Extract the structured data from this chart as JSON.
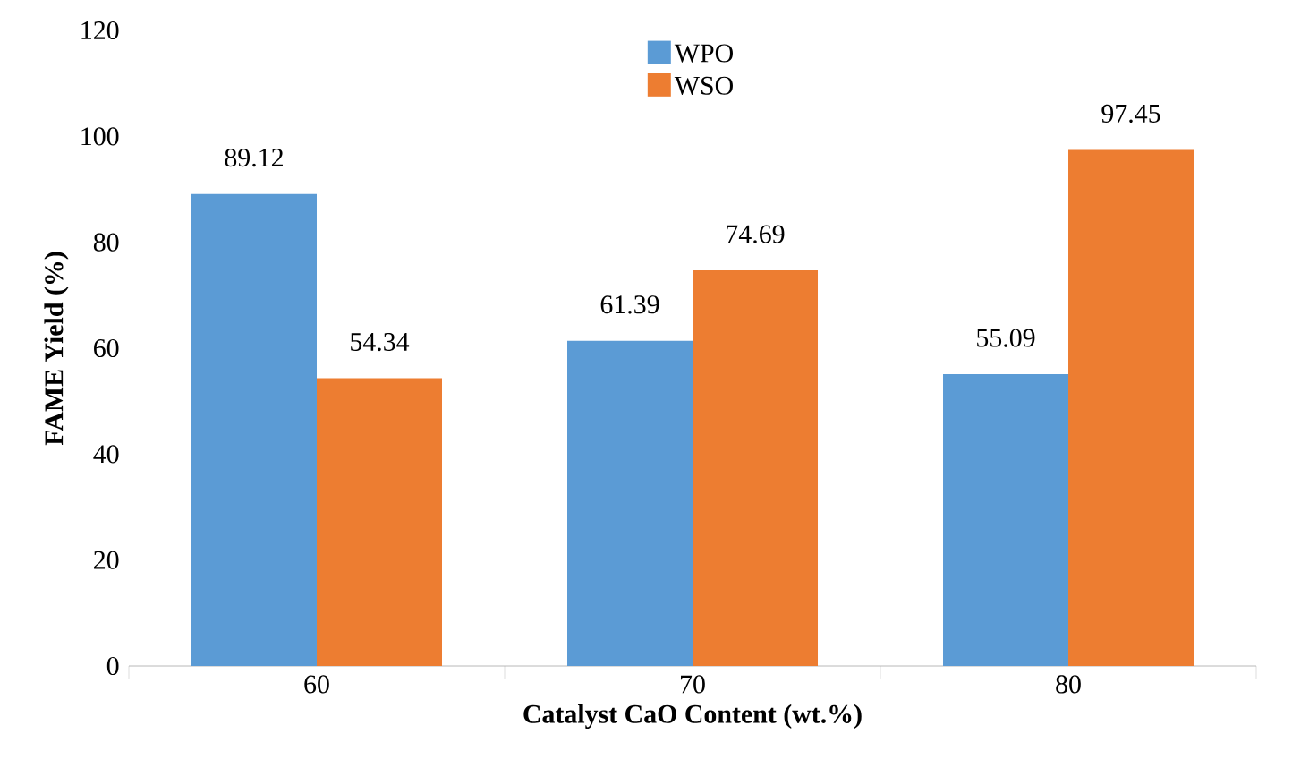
{
  "chart_data": {
    "type": "bar",
    "xlabel": "Catalyst CaO Content (wt.%)",
    "ylabel": "FAME Yield (%)",
    "categories": [
      "60",
      "70",
      "80"
    ],
    "series": [
      {
        "name": "WPO",
        "color": "#5b9bd5",
        "values": [
          89.12,
          61.39,
          55.09
        ]
      },
      {
        "name": "WSO",
        "color": "#ed7d31",
        "values": [
          54.34,
          74.69,
          97.45
        ]
      }
    ],
    "ylim": [
      0,
      120
    ],
    "yticks": [
      0,
      20,
      40,
      60,
      80,
      100,
      120
    ],
    "grid": false,
    "legend": "top",
    "data_labels": true
  }
}
